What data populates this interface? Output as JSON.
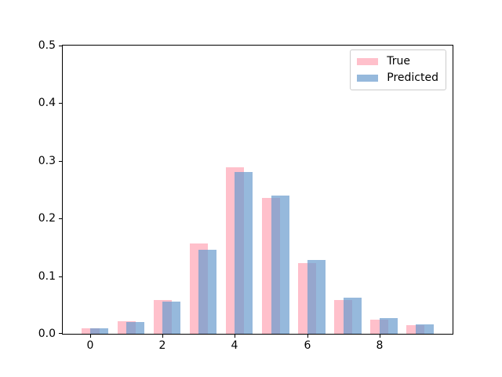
{
  "chart_data": {
    "type": "bar",
    "title": "",
    "xlabel": "",
    "ylabel": "",
    "categories": [
      0,
      1,
      2,
      3,
      4,
      5,
      6,
      7,
      8,
      9
    ],
    "series": [
      {
        "name": "True",
        "color": "#FFC0CB",
        "legend_color": "#FFC0CB",
        "values": [
          0.01,
          0.022,
          0.058,
          0.156,
          0.289,
          0.236,
          0.123,
          0.059,
          0.025,
          0.015
        ]
      },
      {
        "name": "Predicted",
        "color": "rgba(105,155,205,0.7)",
        "legend_color": "#96B9DC",
        "values": [
          0.009,
          0.021,
          0.056,
          0.146,
          0.28,
          0.24,
          0.128,
          0.062,
          0.027,
          0.016
        ]
      }
    ],
    "bar_width_units": 0.5,
    "second_series_offset_units": 0.25,
    "ylim": [
      0.0,
      0.5
    ],
    "yticks": [
      {
        "value": 0.0,
        "label": "0.0"
      },
      {
        "value": 0.1,
        "label": "0.1"
      },
      {
        "value": 0.2,
        "label": "0.2"
      },
      {
        "value": 0.3,
        "label": "0.3"
      },
      {
        "value": 0.4,
        "label": "0.4"
      },
      {
        "value": 0.5,
        "label": "0.5"
      }
    ],
    "xticks": [
      {
        "value": 0,
        "label": "0"
      },
      {
        "value": 2,
        "label": "2"
      },
      {
        "value": 4,
        "label": "4"
      },
      {
        "value": 6,
        "label": "6"
      },
      {
        "value": 8,
        "label": "8"
      }
    ],
    "legend": {
      "position": "upper-right",
      "entries": [
        "True",
        "Predicted"
      ]
    },
    "grid": false,
    "background": "#ffffff"
  }
}
